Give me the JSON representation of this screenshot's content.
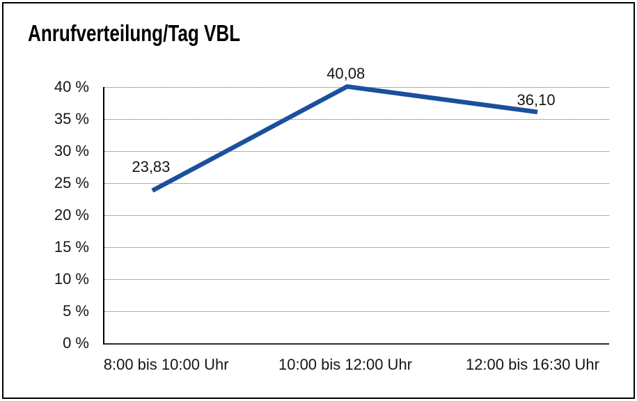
{
  "chart_data": {
    "type": "line",
    "title": "Anrufverteilung/Tag VBL",
    "categories": [
      "8:00 bis 10:00 Uhr",
      "10:00 bis 12:00 Uhr",
      "12:00 bis 16:30 Uhr"
    ],
    "values": [
      23.83,
      40.08,
      36.1
    ],
    "data_labels": [
      "23,83",
      "40,08",
      "36,10"
    ],
    "y_ticks": [
      "0 %",
      "5 %",
      "10 %",
      "15 %",
      "20 %",
      "25 %",
      "30 %",
      "35 %",
      "40 %"
    ],
    "ylim": [
      0,
      40
    ],
    "xlabel": "",
    "ylabel": "",
    "grid": "horizontal-dotted",
    "legend": "none",
    "line_color": "#1b4f9c",
    "axis_color": "#000000",
    "gridline_color": "#5d5d5d",
    "text_color": "#151515",
    "background_color": "#ffffff"
  }
}
